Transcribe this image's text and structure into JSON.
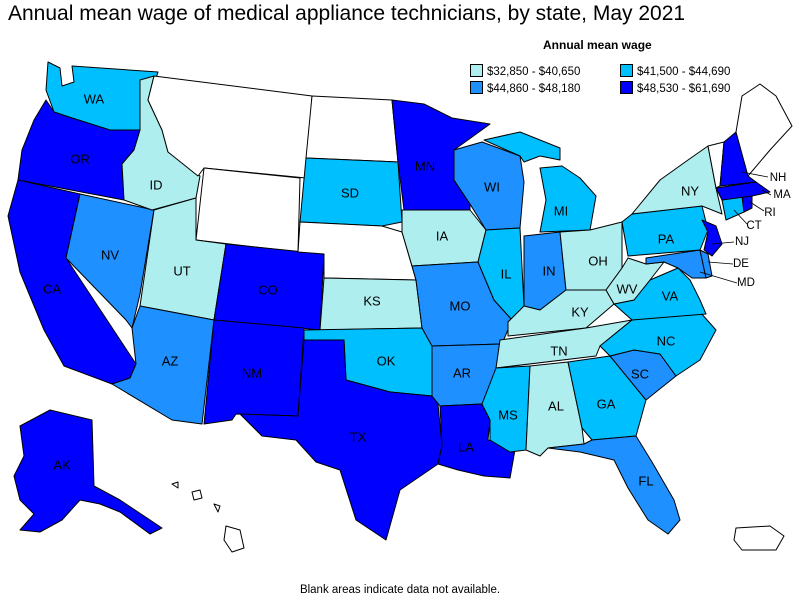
{
  "title": "Annual mean wage of medical appliance technicians, by state, May 2021",
  "legend": {
    "title": "Annual mean wage",
    "items": [
      {
        "label": "$32,850 - $40,650",
        "color": "#afeeee"
      },
      {
        "label": "$41,500 - $44,690",
        "color": "#00bfff"
      },
      {
        "label": "$44,860 - $48,180",
        "color": "#1e90ff"
      },
      {
        "label": "$48,530 - $61,690",
        "color": "#0000ff"
      }
    ]
  },
  "footnote": "Blank areas indicate data not available.",
  "states": {
    "WA": {
      "label": "WA",
      "tier": 1
    },
    "OR": {
      "label": "OR",
      "tier": 3
    },
    "CA": {
      "label": "CA",
      "tier": 3
    },
    "NV": {
      "label": "NV",
      "tier": 2
    },
    "ID": {
      "label": "ID",
      "tier": 0
    },
    "MT": {
      "label": "",
      "tier": null
    },
    "WY": {
      "label": "",
      "tier": null
    },
    "UT": {
      "label": "UT",
      "tier": 0
    },
    "AZ": {
      "label": "AZ",
      "tier": 2
    },
    "CO": {
      "label": "CO",
      "tier": 3
    },
    "NM": {
      "label": "NM",
      "tier": 3
    },
    "ND": {
      "label": "",
      "tier": null
    },
    "SD": {
      "label": "SD",
      "tier": 1
    },
    "NE": {
      "label": "",
      "tier": null
    },
    "KS": {
      "label": "KS",
      "tier": 0
    },
    "OK": {
      "label": "OK",
      "tier": 1
    },
    "TX": {
      "label": "TX",
      "tier": 3
    },
    "MN": {
      "label": "MN",
      "tier": 3
    },
    "IA": {
      "label": "IA",
      "tier": 0
    },
    "MO": {
      "label": "MO",
      "tier": 2
    },
    "AR": {
      "label": "AR",
      "tier": 2
    },
    "LA": {
      "label": "LA",
      "tier": 3
    },
    "WI": {
      "label": "WI",
      "tier": 2
    },
    "IL": {
      "label": "IL",
      "tier": 1
    },
    "MI": {
      "label": "MI",
      "tier": 1
    },
    "IN": {
      "label": "IN",
      "tier": 2
    },
    "OH": {
      "label": "OH",
      "tier": 0
    },
    "KY": {
      "label": "KY",
      "tier": 0
    },
    "TN": {
      "label": "TN",
      "tier": 0
    },
    "MS": {
      "label": "MS",
      "tier": 1
    },
    "AL": {
      "label": "AL",
      "tier": 0
    },
    "GA": {
      "label": "GA",
      "tier": 1
    },
    "FL": {
      "label": "FL",
      "tier": 2
    },
    "SC": {
      "label": "SC",
      "tier": 2
    },
    "NC": {
      "label": "NC",
      "tier": 1
    },
    "VA": {
      "label": "VA",
      "tier": 1
    },
    "WV": {
      "label": "WV",
      "tier": 0
    },
    "PA": {
      "label": "PA",
      "tier": 1
    },
    "NY": {
      "label": "NY",
      "tier": 0
    },
    "MD": {
      "label": "MD",
      "tier": 2
    },
    "DE": {
      "label": "DE",
      "tier": 2
    },
    "NJ": {
      "label": "NJ",
      "tier": 3
    },
    "CT": {
      "label": "CT",
      "tier": 1
    },
    "RI": {
      "label": "RI",
      "tier": 3
    },
    "MA": {
      "label": "MA",
      "tier": 3
    },
    "VT": {
      "label": "",
      "tier": null
    },
    "NH": {
      "label": "NH",
      "tier": 3
    },
    "ME": {
      "label": "",
      "tier": null
    },
    "AK": {
      "label": "AK",
      "tier": 3
    },
    "HI": {
      "label": "",
      "tier": null
    },
    "PR": {
      "label": "",
      "tier": null
    }
  }
}
